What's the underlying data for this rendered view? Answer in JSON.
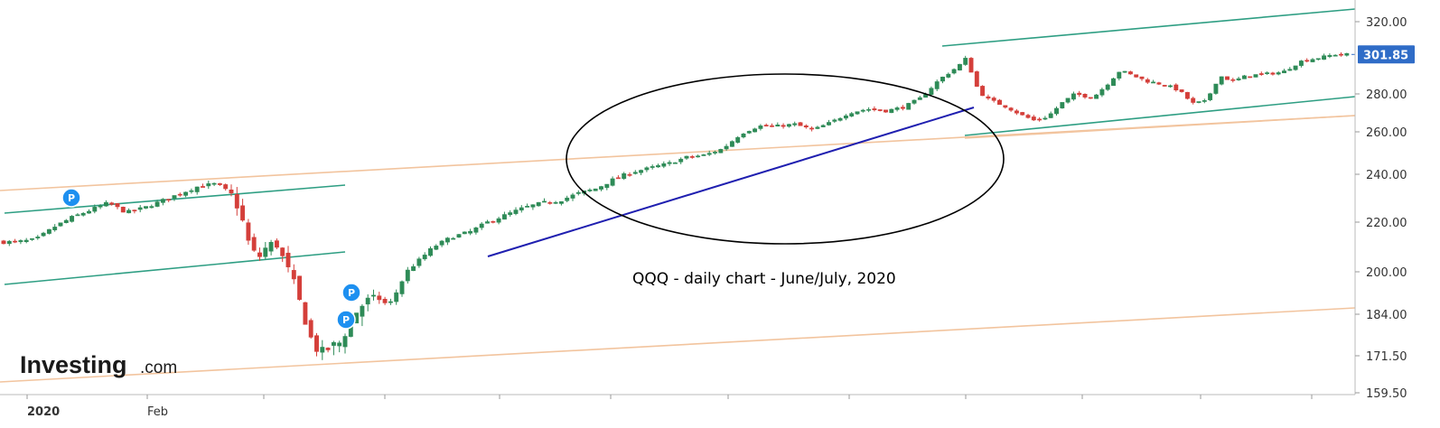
{
  "chart_data": {
    "type": "candlestick",
    "ticker_annotation": "QQQ - daily chart - June/July, 2020",
    "y_axis": {
      "ticks": [
        159.5,
        171.5,
        184.0,
        200.0,
        220.0,
        240.0,
        260.0,
        280.0,
        320.0
      ],
      "tick_labels": [
        "159.50",
        "171.50",
        "184.00",
        "200.00",
        "220.00",
        "240.00",
        "260.00",
        "280.00",
        "320.00"
      ],
      "range": [
        159.5,
        328
      ]
    },
    "x_axis": {
      "labels": [
        "2020",
        "Feb"
      ]
    },
    "last_price": {
      "value": 301.85,
      "label": "301.85",
      "color": "#2F6CC7"
    },
    "colors": {
      "up": "#2E8B57",
      "down": "#D43F3A",
      "channel": "#2E9E83",
      "fib": "#F2C49E",
      "trend": "#1F1FB0",
      "ellipse": "#000000",
      "pivot": "#1E90F0"
    },
    "pivot_markers": [
      "P",
      "P",
      "P"
    ],
    "watermark": {
      "brand": "Investing",
      "suffix": ".com"
    }
  }
}
